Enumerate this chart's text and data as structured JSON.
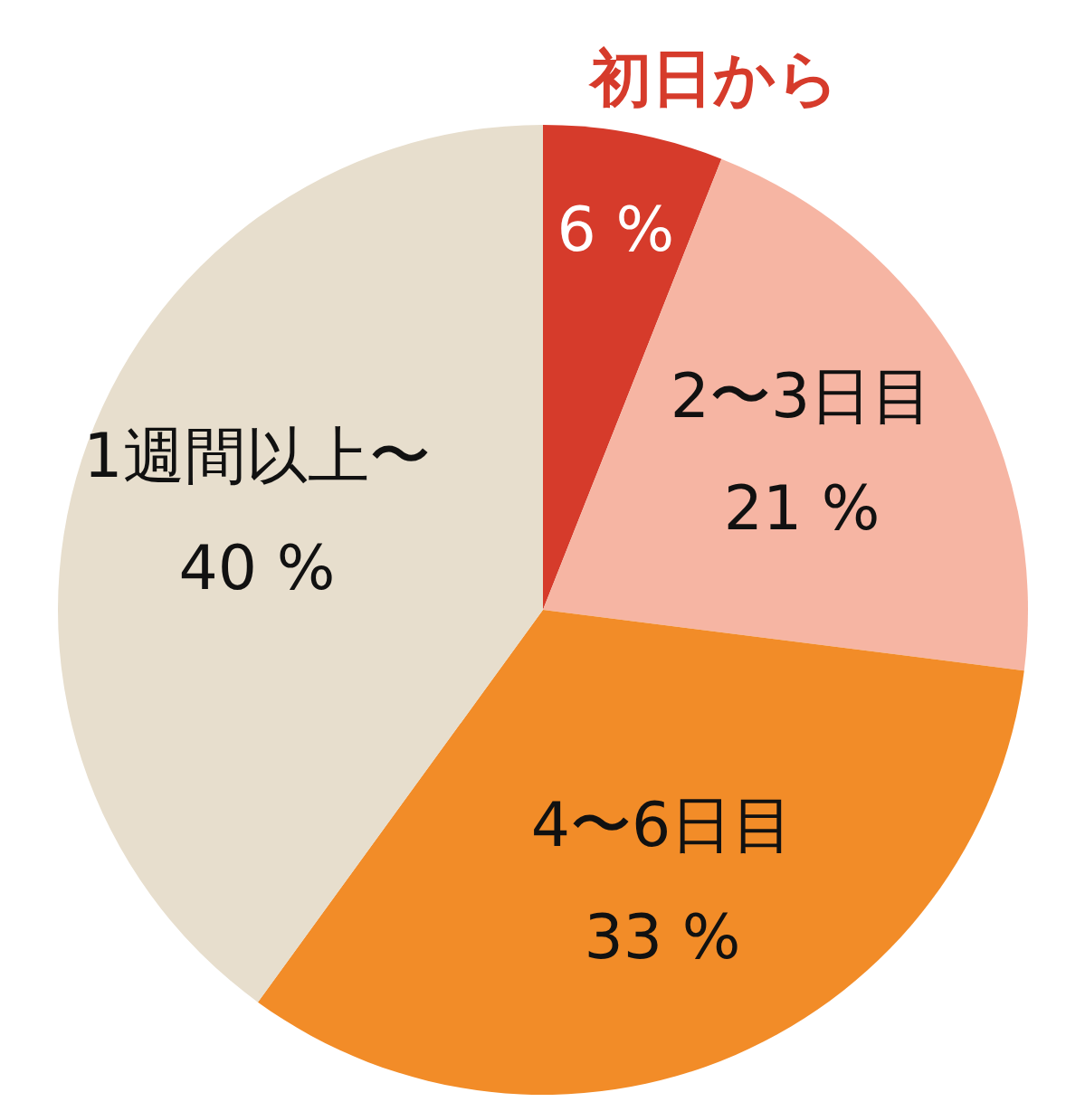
{
  "chart_data": {
    "type": "pie",
    "categories": [
      "初日から",
      "2〜3日目",
      "4〜6日目",
      "1週間以上〜"
    ],
    "values": [
      6,
      21,
      33,
      40
    ],
    "colors": [
      "#d63b2b",
      "#f6b5a3",
      "#f28c28",
      "#e7decd"
    ],
    "value_labels": [
      "6 %",
      "21 %",
      "33 %",
      "40 %"
    ]
  }
}
